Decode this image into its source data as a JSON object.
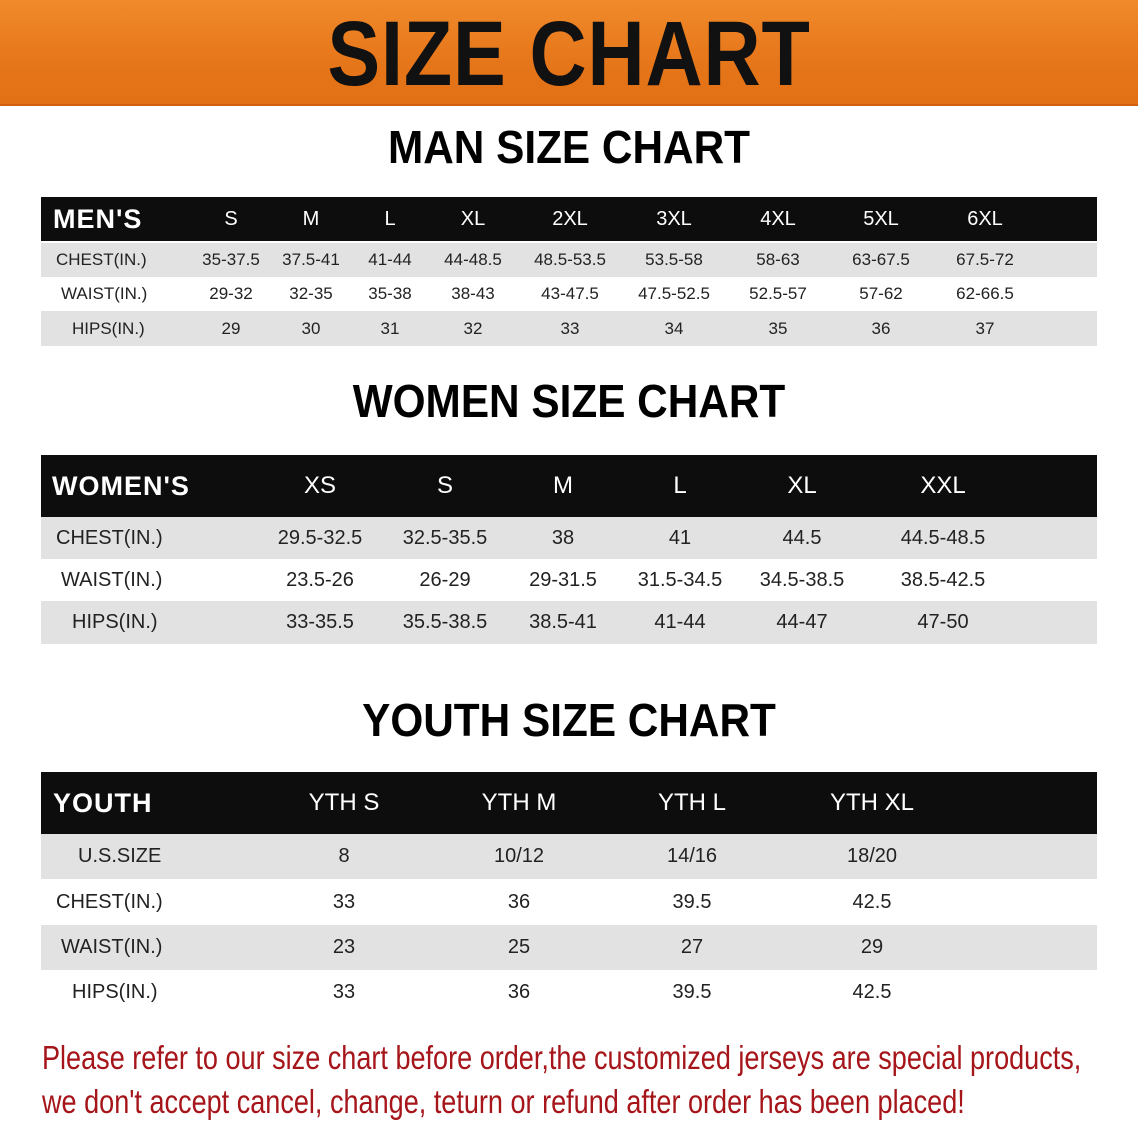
{
  "banner_title": "SIZE CHART",
  "men": {
    "title": "MAN SIZE CHART",
    "header": [
      "MEN'S",
      "S",
      "M",
      "L",
      "XL",
      "2XL",
      "3XL",
      "4XL",
      "5XL",
      "6XL"
    ],
    "rows": [
      [
        "CHEST(IN.)",
        "35-37.5",
        "37.5-41",
        "41-44",
        "44-48.5",
        "48.5-53.5",
        "53.5-58",
        "58-63",
        "63-67.5",
        "67.5-72"
      ],
      [
        "WAIST(IN.)",
        "29-32",
        "32-35",
        "35-38",
        "38-43",
        "43-47.5",
        "47.5-52.5",
        "52.5-57",
        "57-62",
        "62-66.5"
      ],
      [
        "HIPS(IN.)",
        "29",
        "30",
        "31",
        "32",
        "33",
        "34",
        "35",
        "36",
        "37"
      ]
    ]
  },
  "women": {
    "title": "WOMEN SIZE CHART",
    "header": [
      "WOMEN'S",
      "XS",
      "S",
      "M",
      "L",
      "XL",
      "XXL"
    ],
    "rows": [
      [
        "CHEST(IN.)",
        "29.5-32.5",
        "32.5-35.5",
        "38",
        "41",
        "44.5",
        "44.5-48.5"
      ],
      [
        "WAIST(IN.)",
        "23.5-26",
        "26-29",
        "29-31.5",
        "31.5-34.5",
        "34.5-38.5",
        "38.5-42.5"
      ],
      [
        "HIPS(IN.)",
        "33-35.5",
        "35.5-38.5",
        "38.5-41",
        "41-44",
        "44-47",
        "47-50"
      ]
    ]
  },
  "youth": {
    "title": "YOUTH SIZE CHART",
    "header": [
      "YOUTH",
      "YTH S",
      "YTH M",
      "YTH L",
      "YTH XL"
    ],
    "rows": [
      [
        "U.S.SIZE",
        "8",
        "10/12",
        "14/16",
        "18/20"
      ],
      [
        "CHEST(IN.)",
        "33",
        "36",
        "39.5",
        "42.5"
      ],
      [
        "WAIST(IN.)",
        "23",
        "25",
        "27",
        "29"
      ],
      [
        "HIPS(IN.)",
        "33",
        "36",
        "39.5",
        "42.5"
      ]
    ]
  },
  "note": {
    "line1": "Please refer to our size chart before order,the customized jerseys are special products,",
    "line2": "we don't accept cancel, change, teturn or refund after order has been placed!"
  },
  "colors": {
    "banner": "#e8781c",
    "note_text": "#a5151a",
    "header_bg": "#0d0d0d",
    "stripe": "#e2e2e2"
  }
}
